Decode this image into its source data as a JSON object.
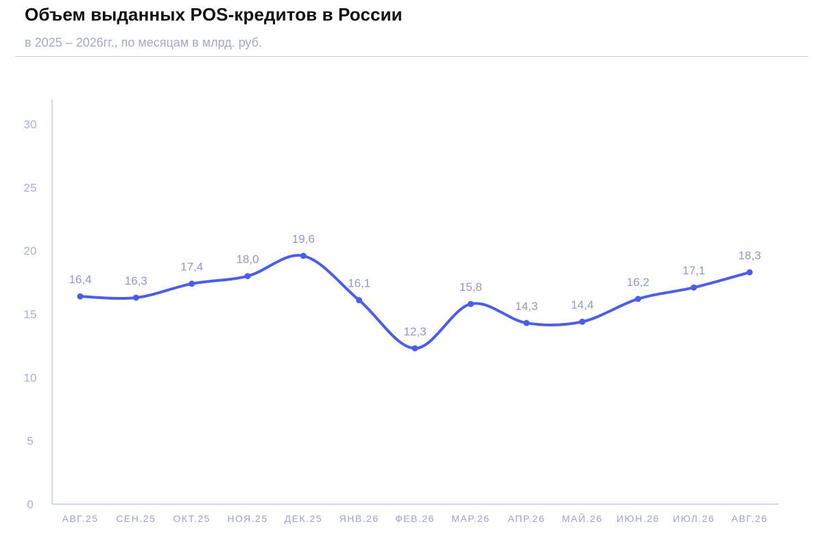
{
  "header": {
    "title": "Объем выданных POS-кредитов в России",
    "subtitle": "в 2025 – 2026гг., по месяцам в млрд. руб."
  },
  "colors": {
    "line": "#4a5cf6",
    "axis": "#b9bfd9",
    "tick_text": "#a7afd6",
    "data_label": "#8f98c8"
  },
  "chart_data": {
    "type": "line",
    "categories": [
      "АВГ.25",
      "СЕН.25",
      "ОКТ.25",
      "НОЯ.25",
      "ДЕК.25",
      "ЯНВ.26",
      "ФЕВ.26",
      "МАР.26",
      "АПР.26",
      "МАЙ.26",
      "ИЮН.26",
      "ИЮЛ.26",
      "АВГ.26"
    ],
    "values": [
      16.4,
      16.3,
      17.4,
      18.0,
      19.6,
      16.1,
      12.3,
      15.8,
      14.3,
      14.4,
      16.2,
      17.1,
      18.3
    ],
    "value_labels": [
      "16,4",
      "16,3",
      "17,4",
      "18,0",
      "19,6",
      "16,1",
      "12,3",
      "15,8",
      "14,3",
      "14,4",
      "16,2",
      "17,1",
      "18,3"
    ],
    "y_ticks": [
      0,
      5,
      10,
      15,
      20,
      25,
      30
    ],
    "ylim": [
      0,
      30
    ],
    "title": "Объем выданных POS-кредитов в России",
    "subtitle": "в 2025 – 2026гг., по месяцам в млрд. руб.",
    "xlabel": "",
    "ylabel": "",
    "grid": false,
    "smooth": true
  }
}
